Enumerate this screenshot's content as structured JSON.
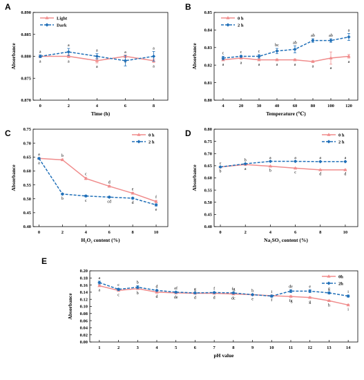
{
  "colors": {
    "pink": "#f08c8c",
    "blue": "#1f6fb8",
    "axis": "#000000"
  },
  "chart_data": [
    {
      "id": "A",
      "type": "line",
      "letter": "A",
      "xlabel": "Time (h)",
      "ylabel": "Absorbance",
      "x": [
        0,
        2,
        4,
        6,
        8
      ],
      "xlim": [
        -0.5,
        9
      ],
      "ylim": [
        0.87,
        0.89
      ],
      "xticks": [
        "0",
        "2",
        "4",
        "6",
        "8"
      ],
      "yticks": [
        0.87,
        0.875,
        0.88,
        0.885,
        0.89
      ],
      "ytick_labels": [
        "0.870",
        "0.875",
        "0.880",
        "0.885",
        "0.890"
      ],
      "legend_pos": "top-left",
      "series": [
        {
          "name": "Light",
          "values": [
            0.88,
            0.88,
            0.879,
            0.88,
            0.879
          ],
          "err": [
            0.0003,
            0.0003,
            0.0005,
            0.0003,
            0.0004
          ],
          "sig": [
            "a",
            "a",
            "a",
            "a",
            "a"
          ],
          "sig_pos": "below"
        },
        {
          "name": "Dark",
          "values": [
            0.88,
            0.881,
            0.88,
            0.879,
            0.88
          ],
          "err": [
            0.0003,
            0.0008,
            0.0006,
            0.0012,
            0.0011
          ],
          "sig": [
            "a",
            "a",
            "a",
            "a",
            "a"
          ],
          "sig_pos": "above"
        }
      ]
    },
    {
      "id": "B",
      "type": "line",
      "letter": "B",
      "xlabel": "Temperature (℃)",
      "ylabel": "Absorbance",
      "x": [
        1,
        2,
        3,
        4,
        5,
        6,
        7,
        8
      ],
      "xlim": [
        0.5,
        8.5
      ],
      "ylim": [
        0.8,
        0.85
      ],
      "xticks": [
        "4",
        "20",
        "30",
        "40",
        "60",
        "80",
        "100",
        "120"
      ],
      "yticks": [
        0.8,
        0.81,
        0.82,
        0.83,
        0.84,
        0.85
      ],
      "ytick_labels": [
        "0.80",
        "0.81",
        "0.82",
        "0.83",
        "0.84",
        "0.85"
      ],
      "legend_pos": "top-left",
      "series": [
        {
          "name": "0 h",
          "values": [
            0.823,
            0.824,
            0.823,
            0.823,
            0.823,
            0.822,
            0.824,
            0.825
          ],
          "err": [
            0.0005,
            0.0005,
            0.0005,
            0.0005,
            0.0005,
            0.0005,
            0.0035,
            0.001
          ],
          "sig": [
            "a",
            "a",
            "a",
            "a",
            "a",
            "a",
            "a",
            "a"
          ],
          "sig_pos": "below"
        },
        {
          "name": "2 h",
          "values": [
            0.824,
            0.825,
            0.825,
            0.828,
            0.829,
            0.834,
            0.834,
            0.836
          ],
          "err": [
            0.001,
            0.0005,
            0.001,
            0.0015,
            0.002,
            0.001,
            0.001,
            0.002
          ],
          "sig": [
            "c",
            "c",
            "c",
            "bc",
            "ab",
            "ab",
            "ab",
            "a"
          ],
          "sig_pos": "above"
        }
      ]
    },
    {
      "id": "C",
      "type": "line",
      "letter": "C",
      "xlabel": "H₂O₂ content (%)",
      "ylabel": "Absorbance",
      "x": [
        0,
        2,
        4,
        6,
        8,
        10
      ],
      "xlim": [
        -0.5,
        11
      ],
      "ylim": [
        0.4,
        0.75
      ],
      "xticks": [
        "0",
        "2",
        "4",
        "6",
        "8",
        "10"
      ],
      "yticks": [
        0.4,
        0.45,
        0.5,
        0.55,
        0.6,
        0.65,
        0.7,
        0.75
      ],
      "ytick_labels": [
        "0.40",
        "0.45",
        "0.50",
        "0.55",
        "0.60",
        "0.65",
        "0.70",
        "0.75"
      ],
      "legend_pos": "top-right",
      "series": [
        {
          "name": "0 h",
          "values": [
            0.645,
            0.64,
            0.573,
            0.545,
            0.52,
            0.49
          ],
          "err": [
            0.003,
            0.003,
            0.004,
            0.003,
            0.003,
            0.004
          ],
          "sig": [
            "a",
            "b",
            "c",
            "d",
            "e",
            "f"
          ],
          "sig_pos": "above"
        },
        {
          "name": "2 h",
          "values": [
            0.645,
            0.517,
            0.51,
            0.506,
            0.502,
            0.478
          ],
          "err": [
            0.003,
            0.003,
            0.003,
            0.003,
            0.003,
            0.004
          ],
          "sig": [
            "a",
            "b",
            "c",
            "cd",
            "d",
            "e"
          ],
          "sig_pos": "below"
        }
      ]
    },
    {
      "id": "D",
      "type": "line",
      "letter": "D",
      "xlabel": "Na₂SO₃ content (%)",
      "ylabel": "Absorbance",
      "x": [
        0,
        2,
        4,
        6,
        8,
        10
      ],
      "xlim": [
        -0.5,
        11
      ],
      "ylim": [
        0.4,
        0.8
      ],
      "xticks": [
        "0",
        "2",
        "4",
        "6",
        "8",
        "10"
      ],
      "yticks": [
        0.4,
        0.45,
        0.5,
        0.55,
        0.6,
        0.65,
        0.7,
        0.75,
        0.8
      ],
      "ytick_labels": [
        "0.40",
        "0.45",
        "0.50",
        "0.55",
        "0.60",
        "0.65",
        "0.70",
        "0.75",
        "0.80"
      ],
      "legend_pos": "top-right",
      "series": [
        {
          "name": "0 h",
          "values": [
            0.645,
            0.655,
            0.648,
            0.64,
            0.633,
            0.633
          ],
          "err": [
            0.002,
            0.002,
            0.002,
            0.002,
            0.002,
            0.002
          ],
          "sig": [
            "b",
            "a",
            "b",
            "c",
            "d",
            "d"
          ],
          "sig_pos": "below"
        },
        {
          "name": "2 h",
          "values": [
            0.645,
            0.658,
            0.668,
            0.668,
            0.667,
            0.667
          ],
          "err": [
            0.002,
            0.002,
            0.002,
            0.002,
            0.002,
            0.002
          ],
          "sig": [
            "c",
            "b",
            "a",
            "a",
            "a",
            "a"
          ],
          "sig_pos": "above"
        }
      ]
    },
    {
      "id": "E",
      "type": "line",
      "letter": "E",
      "xlabel": "pH value",
      "ylabel": "Absorbance",
      "x": [
        1,
        2,
        3,
        4,
        5,
        6,
        7,
        8,
        9,
        10,
        11,
        12,
        13,
        14
      ],
      "xlim": [
        0.5,
        14.5
      ],
      "ylim": [
        0.0,
        0.2
      ],
      "xticks": [
        "1",
        "2",
        "3",
        "4",
        "5",
        "6",
        "7",
        "8",
        "9",
        "10",
        "11",
        "12",
        "13",
        "14"
      ],
      "yticks": [
        0.0,
        0.02,
        0.04,
        0.06,
        0.08,
        0.1,
        0.12,
        0.14,
        0.16,
        0.18,
        0.2
      ],
      "ytick_labels": [
        "0.00",
        "0.02",
        "0.04",
        "0.06",
        "0.08",
        "0.10",
        "0.12",
        "0.14",
        "0.16",
        "0.18",
        "0.20"
      ],
      "legend_pos": "top-right",
      "series": [
        {
          "name": "0h",
          "values": [
            0.158,
            0.145,
            0.15,
            0.14,
            0.138,
            0.137,
            0.137,
            0.135,
            0.133,
            0.13,
            0.128,
            0.125,
            0.116,
            0.104
          ],
          "err": [
            0.002,
            0.002,
            0.002,
            0.002,
            0.002,
            0.002,
            0.002,
            0.002,
            0.002,
            0.002,
            0.002,
            0.002,
            0.002,
            0.002
          ],
          "sig": [
            "a",
            "c",
            "b",
            "d",
            "de",
            "d",
            "d",
            "dc",
            "e",
            "f",
            "fg",
            "g",
            "h",
            "i"
          ],
          "sig_pos": "below"
        },
        {
          "name": "2h",
          "values": [
            0.167,
            0.148,
            0.154,
            0.145,
            0.14,
            0.138,
            0.139,
            0.138,
            0.133,
            0.129,
            0.143,
            0.143,
            0.138,
            0.129
          ],
          "err": [
            0.004,
            0.003,
            0.004,
            0.002,
            0.002,
            0.002,
            0.002,
            0.002,
            0.002,
            0.003,
            0.004,
            0.004,
            0.003,
            0.003
          ],
          "sig": [
            "a",
            "c",
            "b",
            "d",
            "ef",
            "g",
            "f",
            "fg",
            "h",
            "i",
            "de",
            "e",
            "g",
            "i"
          ],
          "sig_pos": "above"
        }
      ]
    }
  ]
}
